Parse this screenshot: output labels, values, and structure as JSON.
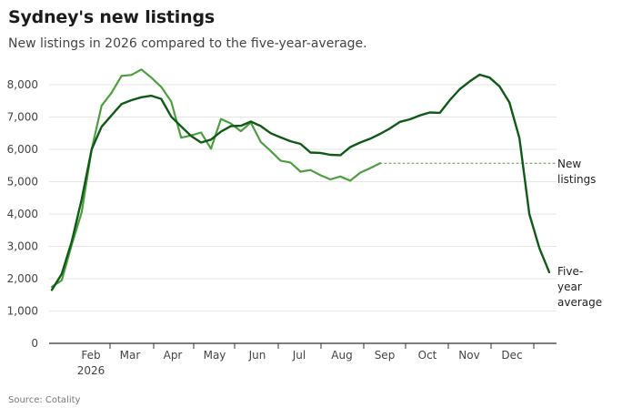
{
  "header": {
    "title": "Sydney's new listings",
    "subtitle": "New listings in 2026 compared to the five-year-average."
  },
  "footer": {
    "source": "Source: Cotality"
  },
  "colors": {
    "new_listings": "#4d9e3f",
    "five_year_average": "#0e5a16",
    "gridline": "#e6e6e6",
    "axis": "#333333"
  },
  "chart_data": {
    "type": "line",
    "title": "Sydney's new listings",
    "subtitle": "New listings in 2026 compared to the five-year-average.",
    "xlabel": "",
    "ylabel": "",
    "x_unit": "week",
    "xlim": [
      0,
      53
    ],
    "ylim": [
      0,
      8500
    ],
    "yticks": [
      0,
      1000,
      2000,
      3000,
      4000,
      5000,
      6000,
      7000,
      8000
    ],
    "ytick_labels": [
      "0",
      "1,000",
      "2,000",
      "3,000",
      "4,000",
      "5,000",
      "6,000",
      "7,000",
      "8,000"
    ],
    "xticks": [
      {
        "week": 4.6,
        "label": "Feb",
        "sublabel": "2026"
      },
      {
        "week": 8.9,
        "label": "Mar",
        "sublabel": ""
      },
      {
        "week": 13.2,
        "label": "Apr",
        "sublabel": ""
      },
      {
        "week": 17.5,
        "label": "May",
        "sublabel": ""
      },
      {
        "week": 21.8,
        "label": "Jun",
        "sublabel": ""
      },
      {
        "week": 26.1,
        "label": "Jul",
        "sublabel": ""
      },
      {
        "week": 30.4,
        "label": "Aug",
        "sublabel": ""
      },
      {
        "week": 34.7,
        "label": "Sep",
        "sublabel": ""
      },
      {
        "week": 39.0,
        "label": "Oct",
        "sublabel": ""
      },
      {
        "week": 43.3,
        "label": "Nov",
        "sublabel": ""
      },
      {
        "week": 47.6,
        "label": "Dec",
        "sublabel": ""
      }
    ],
    "grid": true,
    "legend": "inline-right",
    "series": [
      {
        "name": "New listings",
        "label_lines": [
          "New",
          "listings"
        ],
        "style": "solid",
        "x": [
          0,
          1,
          2,
          3,
          4,
          5,
          6,
          7,
          8,
          9,
          10,
          11,
          12,
          13,
          14,
          15,
          16,
          17,
          18,
          19,
          20,
          21,
          22,
          23,
          24,
          25,
          26,
          27,
          28,
          29,
          30,
          31,
          32,
          33
        ],
        "values": [
          1750,
          1950,
          3050,
          4050,
          6000,
          7350,
          7750,
          8270,
          8300,
          8470,
          8220,
          7930,
          7480,
          6360,
          6430,
          6520,
          6020,
          6940,
          6800,
          6560,
          6830,
          6230,
          5950,
          5650,
          5590,
          5310,
          5360,
          5200,
          5070,
          5160,
          5030,
          5280,
          5420,
          5570
        ]
      },
      {
        "name": "New listings (current level)",
        "style": "dotted",
        "x": [
          33,
          50
        ],
        "values": [
          5570,
          5570
        ]
      },
      {
        "name": "Five-year average",
        "label_lines": [
          "Five-",
          "year",
          "average"
        ],
        "style": "solid",
        "x": [
          0,
          1,
          2,
          3,
          4,
          5,
          6,
          7,
          8,
          9,
          10,
          11,
          12,
          13,
          14,
          15,
          16,
          17,
          18,
          19,
          20,
          21,
          22,
          23,
          24,
          25,
          26,
          27,
          28,
          29,
          30,
          31,
          32,
          33,
          34,
          35,
          36,
          37,
          38,
          39,
          40,
          41,
          42,
          43,
          44,
          45,
          46,
          47,
          48,
          49,
          50
        ],
        "values": [
          1650,
          2150,
          3150,
          4450,
          6000,
          6700,
          7050,
          7400,
          7520,
          7610,
          7660,
          7560,
          7010,
          6710,
          6410,
          6210,
          6300,
          6550,
          6720,
          6730,
          6860,
          6720,
          6500,
          6370,
          6250,
          6170,
          5900,
          5890,
          5830,
          5820,
          6070,
          6210,
          6330,
          6480,
          6650,
          6850,
          6930,
          7050,
          7140,
          7130,
          7520,
          7860,
          8100,
          8310,
          8220,
          7950,
          7450,
          6350,
          4000,
          2950,
          2200
        ]
      }
    ]
  }
}
